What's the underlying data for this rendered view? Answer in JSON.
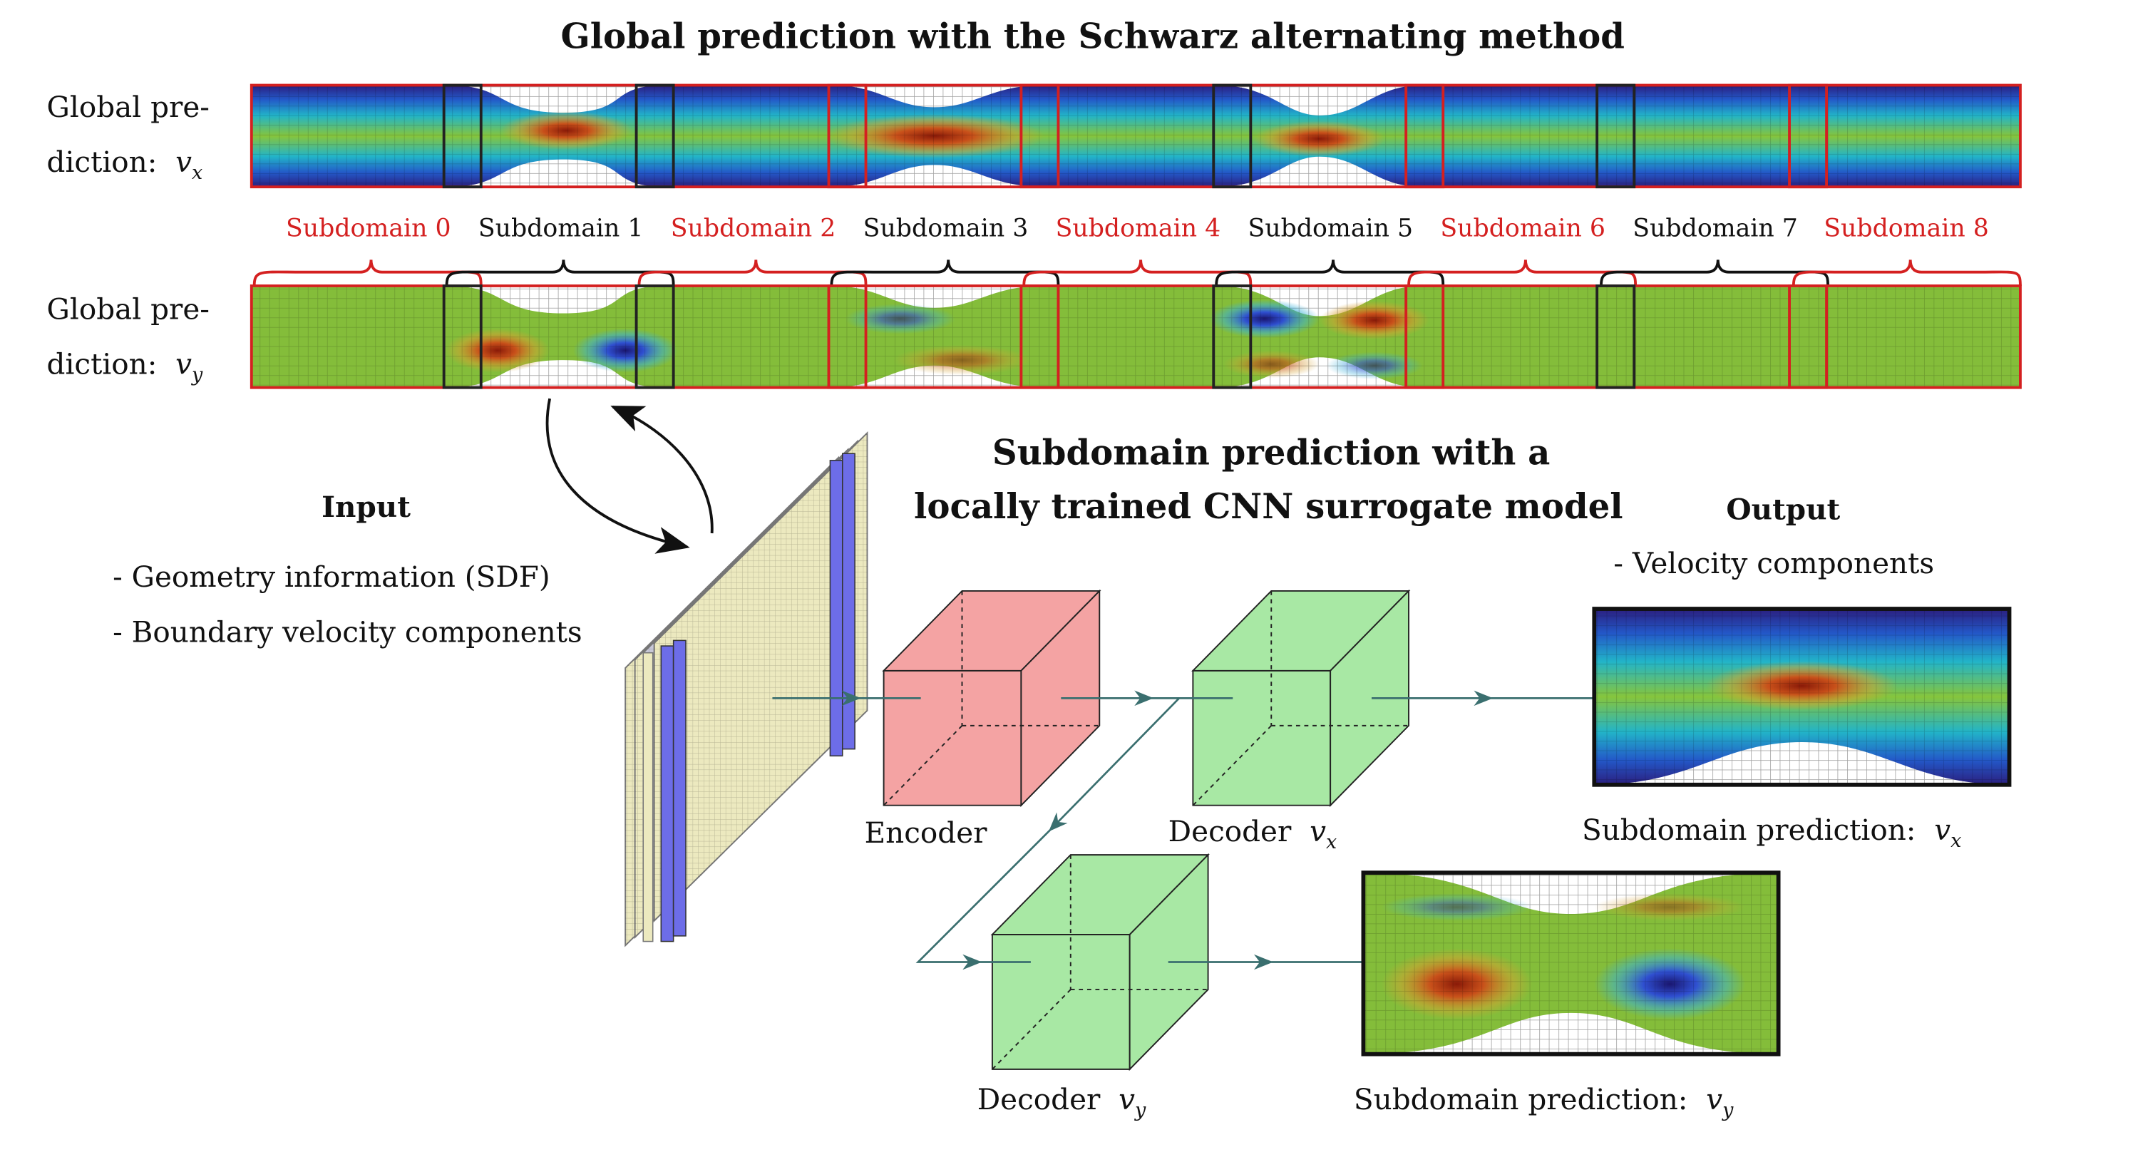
{
  "title_global": "Global prediction with the Schwarz alternating method",
  "global_vx_label": {
    "line1": "Global pre-",
    "line2": "diction:",
    "var": "v",
    "sub": "x"
  },
  "global_vy_label": {
    "line1": "Global pre-",
    "line2": "diction:",
    "var": "v",
    "sub": "y"
  },
  "subdomains": [
    "Subdomain 0",
    "Subdomain 1",
    "Subdomain 2",
    "Subdomain 3",
    "Subdomain 4",
    "Subdomain 5",
    "Subdomain 6",
    "Subdomain 7",
    "Subdomain 8"
  ],
  "colors": {
    "red_subdomain": "#d42020",
    "encoder": "#f4a3a3",
    "decoder": "#a8e8a4",
    "arrow": "#3a6f6f",
    "input_yellow": "#ece9bf",
    "input_blue": "#6d6de8"
  },
  "title_cnn": {
    "line1": "Subdomain prediction with a",
    "line2": "locally trained CNN surrogate model"
  },
  "input": {
    "heading": "Input",
    "items": [
      "- Geometry information (SDF)",
      "- Boundary velocity components"
    ]
  },
  "output": {
    "heading": "Output",
    "items": [
      "- Velocity components"
    ]
  },
  "encoder_label": "Encoder",
  "decoder_vx_label": {
    "text": "Decoder",
    "var": "v",
    "sub": "x"
  },
  "decoder_vy_label": {
    "text": "Decoder",
    "var": "v",
    "sub": "y"
  },
  "pred_vx_label": {
    "text": "Subdomain prediction:",
    "var": "v",
    "sub": "x"
  },
  "pred_vy_label": {
    "text": "Subdomain prediction:",
    "var": "v",
    "sub": "y"
  }
}
